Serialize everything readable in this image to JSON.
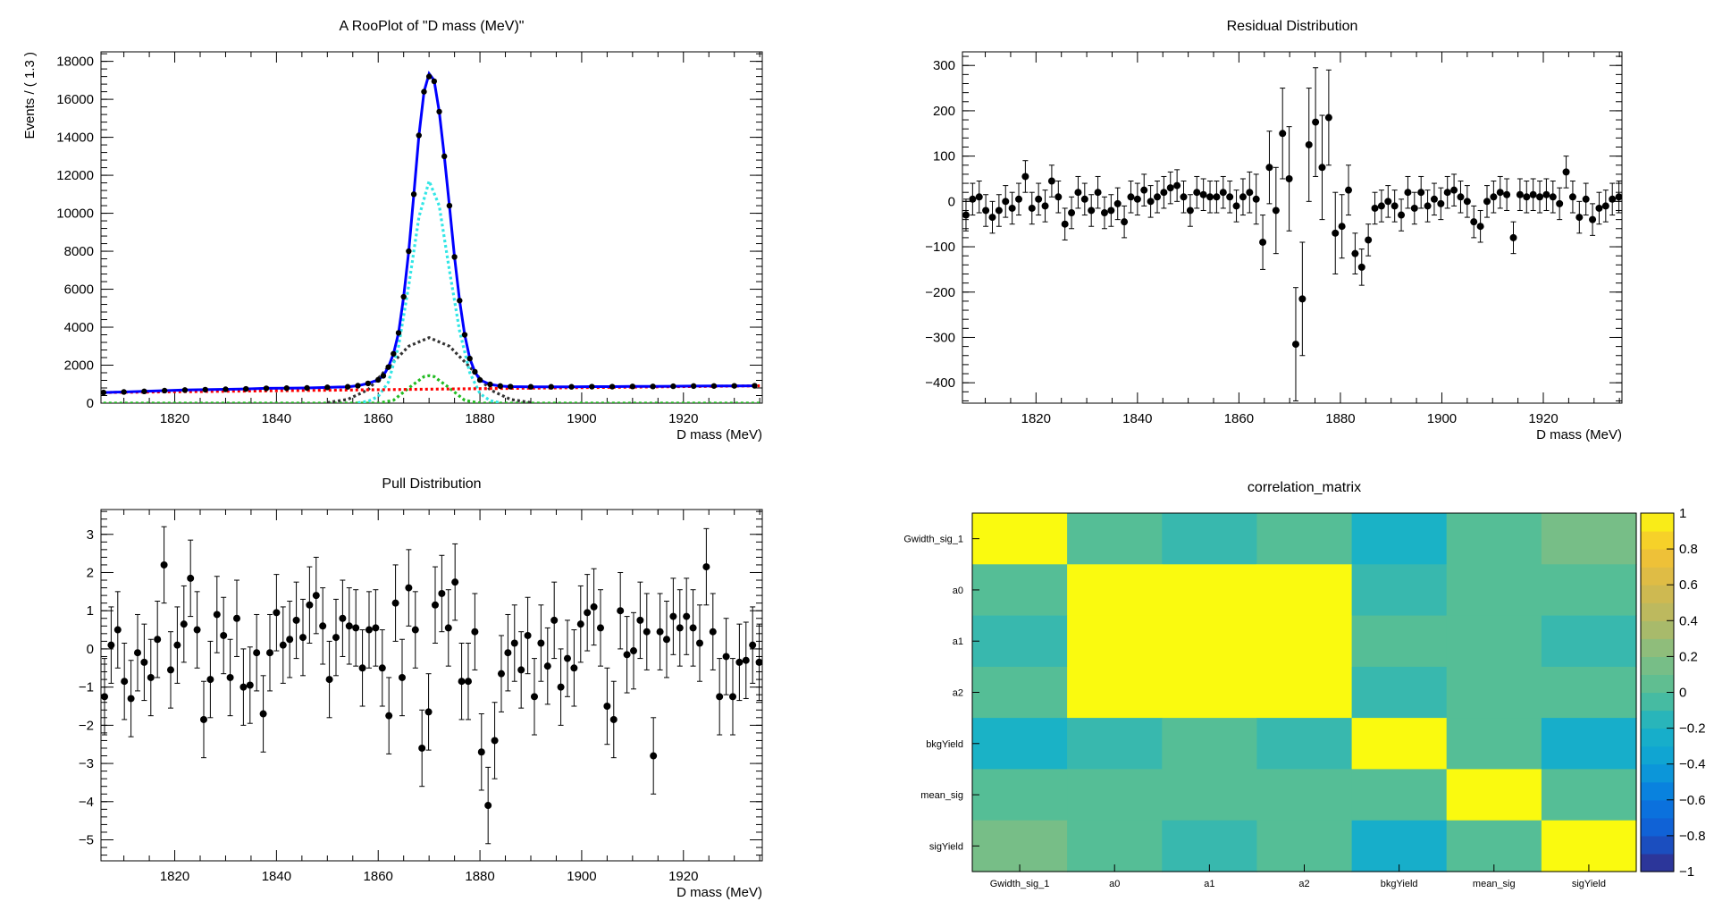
{
  "chart_data": [
    {
      "type": "line",
      "title": "A RooPlot of \"D mass (MeV)\"",
      "xlabel": "D mass (MeV)",
      "ylabel": "Events / ( 1.3 )",
      "xlim": [
        1805.5,
        1935.5
      ],
      "ylim": [
        0,
        18500
      ],
      "xticks": [
        1820,
        1840,
        1860,
        1880,
        1900,
        1920
      ],
      "yticks": [
        0,
        2000,
        4000,
        6000,
        8000,
        10000,
        12000,
        14000,
        16000,
        18000
      ],
      "series": [
        {
          "name": "data",
          "style": "points",
          "color": "#000000",
          "x": [
            1806,
            1810,
            1814,
            1818,
            1822,
            1826,
            1830,
            1834,
            1838,
            1842,
            1846,
            1850,
            1854,
            1856,
            1858,
            1860,
            1861,
            1862,
            1863,
            1864,
            1865,
            1866,
            1867,
            1868,
            1869,
            1870,
            1871,
            1872,
            1873,
            1874,
            1875,
            1876,
            1877,
            1878,
            1879,
            1880,
            1882,
            1884,
            1886,
            1890,
            1894,
            1898,
            1902,
            1906,
            1910,
            1914,
            1918,
            1922,
            1926,
            1930,
            1934
          ],
          "y": [
            560,
            590,
            620,
            660,
            690,
            710,
            730,
            750,
            780,
            790,
            800,
            830,
            860,
            920,
            1040,
            1230,
            1440,
            1900,
            2600,
            3700,
            5600,
            8000,
            11000,
            14100,
            16400,
            17200,
            16950,
            15350,
            13000,
            10400,
            7700,
            5400,
            3600,
            2350,
            1650,
            1220,
            990,
            900,
            870,
            860,
            860,
            860,
            870,
            870,
            880,
            880,
            890,
            900,
            905,
            910,
            915
          ]
        },
        {
          "name": "total-fit",
          "style": "line",
          "color": "#0000ff",
          "x": [
            1806,
            1810,
            1814,
            1818,
            1822,
            1826,
            1830,
            1834,
            1838,
            1842,
            1846,
            1850,
            1854,
            1856,
            1858,
            1860,
            1861,
            1862,
            1863,
            1864,
            1865,
            1866,
            1867,
            1868,
            1869,
            1870,
            1871,
            1872,
            1873,
            1874,
            1875,
            1876,
            1877,
            1878,
            1879,
            1880,
            1882,
            1884,
            1886,
            1890,
            1894,
            1898,
            1902,
            1906,
            1910,
            1914,
            1918,
            1922,
            1926,
            1930,
            1934
          ],
          "y": [
            560,
            590,
            620,
            660,
            690,
            710,
            730,
            750,
            780,
            790,
            800,
            830,
            860,
            920,
            1040,
            1230,
            1440,
            1900,
            2600,
            3700,
            5600,
            8000,
            11000,
            14100,
            16400,
            17350,
            17000,
            15350,
            13000,
            10400,
            7700,
            5400,
            3600,
            2350,
            1650,
            1220,
            990,
            900,
            870,
            860,
            860,
            860,
            870,
            870,
            880,
            880,
            890,
            900,
            905,
            910,
            915
          ]
        },
        {
          "name": "signal-component-1",
          "style": "dashed",
          "color": "#33e6e6",
          "x": [
            1856,
            1858,
            1860,
            1862,
            1864,
            1866,
            1868,
            1870,
            1872,
            1874,
            1876,
            1878,
            1880,
            1882,
            1884
          ],
          "y": [
            20,
            100,
            350,
            1100,
            3000,
            6200,
            9800,
            11700,
            10400,
            7000,
            3800,
            1600,
            500,
            130,
            20
          ]
        },
        {
          "name": "signal-component-2",
          "style": "dashed",
          "color": "#333333",
          "x": [
            1850,
            1854,
            1858,
            1862,
            1866,
            1870,
            1874,
            1878,
            1882,
            1886,
            1890
          ],
          "y": [
            30,
            200,
            700,
            1900,
            3000,
            3450,
            3000,
            1900,
            700,
            200,
            30
          ]
        },
        {
          "name": "signal-component-3",
          "style": "dashed",
          "color": "#22bb22",
          "x": [
            1806,
            1860,
            1863,
            1866,
            1869,
            1870,
            1871,
            1874,
            1877,
            1880,
            1935
          ],
          "y": [
            0,
            0,
            150,
            800,
            1400,
            1450,
            1400,
            800,
            150,
            0,
            0
          ]
        },
        {
          "name": "background",
          "style": "dashed",
          "color": "#ff0000",
          "x": [
            1806,
            1935
          ],
          "y": [
            560,
            915
          ]
        }
      ]
    },
    {
      "type": "scatter",
      "title": "Residual Distribution",
      "xlabel": "D mass (MeV)",
      "ylabel": "",
      "xlim": [
        1805.5,
        1935.5
      ],
      "ylim": [
        -445,
        330
      ],
      "xticks": [
        1820,
        1840,
        1860,
        1880,
        1900,
        1920
      ],
      "yticks": [
        -400,
        -300,
        -200,
        -100,
        0,
        100,
        200,
        300
      ],
      "x": [
        1806.2,
        1807.5,
        1808.8,
        1810.1,
        1811.4,
        1812.7,
        1814.0,
        1815.3,
        1816.6,
        1817.9,
        1819.2,
        1820.5,
        1821.8,
        1823.1,
        1824.4,
        1825.7,
        1827.0,
        1828.3,
        1829.6,
        1830.9,
        1832.2,
        1833.5,
        1834.8,
        1836.1,
        1837.4,
        1838.7,
        1840.0,
        1841.3,
        1842.6,
        1843.9,
        1845.2,
        1846.5,
        1847.8,
        1849.1,
        1850.4,
        1851.7,
        1853.0,
        1854.3,
        1855.6,
        1856.9,
        1858.2,
        1859.5,
        1860.8,
        1862.1,
        1863.4,
        1864.7,
        1866.0,
        1867.3,
        1868.6,
        1869.9,
        1871.2,
        1872.5,
        1873.8,
        1875.1,
        1876.4,
        1877.7,
        1879.0,
        1880.3,
        1881.6,
        1882.9,
        1884.2,
        1885.5,
        1886.8,
        1888.1,
        1889.4,
        1890.7,
        1892.0,
        1893.3,
        1894.6,
        1895.9,
        1897.2,
        1898.5,
        1899.8,
        1901.1,
        1902.4,
        1903.7,
        1905.0,
        1906.3,
        1907.6,
        1908.9,
        1910.2,
        1911.5,
        1912.8,
        1914.1,
        1915.4,
        1916.7,
        1918.0,
        1919.3,
        1920.6,
        1921.9,
        1923.2,
        1924.5,
        1925.8,
        1927.1,
        1928.4,
        1929.7,
        1931.0,
        1932.3,
        1933.6,
        1934.9
      ],
      "y": [
        -30,
        5,
        10,
        -20,
        -35,
        -20,
        0,
        -15,
        5,
        55,
        -15,
        5,
        -10,
        45,
        10,
        -50,
        -25,
        20,
        5,
        -20,
        20,
        -25,
        -20,
        -5,
        -45,
        10,
        5,
        25,
        0,
        10,
        20,
        30,
        35,
        10,
        -20,
        20,
        15,
        10,
        10,
        20,
        10,
        -10,
        10,
        20,
        5,
        -90,
        75,
        -20,
        150,
        50,
        -315,
        -215,
        125,
        175,
        75,
        185,
        -70,
        -55,
        25,
        -115,
        -145,
        -85,
        -15,
        -10,
        0,
        -10,
        -30,
        20,
        -15,
        20,
        -10,
        5,
        -5,
        20,
        25,
        10,
        0,
        -45,
        -55,
        0,
        10,
        20,
        15,
        -80,
        15,
        10,
        15,
        10,
        15,
        10,
        -5,
        65,
        10,
        -35,
        5,
        -40,
        -15,
        -10,
        5,
        10
      ],
      "errors": [
        35,
        35,
        35,
        35,
        35,
        35,
        35,
        35,
        35,
        35,
        35,
        35,
        35,
        35,
        35,
        35,
        35,
        35,
        35,
        35,
        35,
        35,
        35,
        35,
        35,
        35,
        35,
        35,
        35,
        35,
        35,
        35,
        35,
        35,
        35,
        35,
        35,
        35,
        35,
        35,
        35,
        35,
        40,
        45,
        55,
        60,
        80,
        95,
        100,
        115,
        125,
        125,
        125,
        120,
        115,
        105,
        90,
        70,
        55,
        45,
        40,
        35,
        35,
        35,
        35,
        35,
        35,
        35,
        35,
        35,
        35,
        35,
        35,
        35,
        35,
        35,
        35,
        35,
        35,
        35,
        35,
        35,
        35,
        35,
        35,
        35,
        35,
        35,
        35,
        35,
        35,
        35,
        35,
        35,
        35,
        35,
        35,
        35,
        35,
        35
      ]
    },
    {
      "type": "scatter",
      "title": "Pull Distribution",
      "xlabel": "D mass (MeV)",
      "ylabel": "",
      "xlim": [
        1805.5,
        1935.5
      ],
      "ylim": [
        -5.55,
        3.65
      ],
      "xticks": [
        1820,
        1840,
        1860,
        1880,
        1900,
        1920
      ],
      "yticks": [
        -5,
        -4,
        -3,
        -2,
        -1,
        0,
        1,
        2,
        3
      ],
      "x": [
        1806.2,
        1807.5,
        1808.8,
        1810.1,
        1811.4,
        1812.7,
        1814.0,
        1815.3,
        1816.6,
        1817.9,
        1819.2,
        1820.5,
        1821.8,
        1823.1,
        1824.4,
        1825.7,
        1827.0,
        1828.3,
        1829.6,
        1830.9,
        1832.2,
        1833.5,
        1834.8,
        1836.1,
        1837.4,
        1838.7,
        1840.0,
        1841.3,
        1842.6,
        1843.9,
        1845.2,
        1846.5,
        1847.8,
        1849.1,
        1850.4,
        1851.7,
        1853.0,
        1854.3,
        1855.6,
        1856.9,
        1858.2,
        1859.5,
        1860.8,
        1862.1,
        1863.4,
        1864.7,
        1866.0,
        1867.3,
        1868.6,
        1869.9,
        1871.2,
        1872.5,
        1873.8,
        1875.1,
        1876.4,
        1877.7,
        1879.0,
        1880.3,
        1881.6,
        1882.9,
        1884.2,
        1885.5,
        1886.8,
        1888.1,
        1889.4,
        1890.7,
        1892.0,
        1893.3,
        1894.6,
        1895.9,
        1897.2,
        1898.5,
        1899.8,
        1901.1,
        1902.4,
        1903.7,
        1905.0,
        1906.3,
        1907.6,
        1908.9,
        1910.2,
        1911.5,
        1912.8,
        1914.1,
        1915.4,
        1916.7,
        1918.0,
        1919.3,
        1920.6,
        1921.9,
        1923.2,
        1924.5,
        1925.8,
        1927.1,
        1928.4,
        1929.7,
        1931.0,
        1932.3,
        1933.6,
        1934.9
      ],
      "y": [
        -1.25,
        0.1,
        0.5,
        -0.85,
        -1.3,
        -0.1,
        -0.35,
        -0.75,
        0.25,
        2.2,
        -0.55,
        0.1,
        0.65,
        1.85,
        0.5,
        -1.85,
        -0.8,
        0.9,
        0.35,
        -0.75,
        0.8,
        -1.0,
        -0.95,
        -0.1,
        -1.7,
        -0.1,
        0.95,
        0.1,
        0.25,
        0.75,
        0.3,
        1.15,
        1.4,
        0.6,
        -0.8,
        0.3,
        0.8,
        0.6,
        0.55,
        -0.5,
        0.5,
        0.55,
        -0.5,
        -1.75,
        1.2,
        -0.75,
        1.6,
        0.5,
        -2.6,
        -1.65,
        1.15,
        1.45,
        0.55,
        1.75,
        -0.85,
        -0.85,
        0.45,
        -2.7,
        -4.1,
        -2.4,
        -0.65,
        -0.1,
        0.15,
        -0.55,
        0.35,
        -1.25,
        0.15,
        -0.45,
        0.75,
        -1.0,
        -0.25,
        -0.5,
        0.65,
        0.95,
        1.1,
        0.55,
        -1.5,
        -1.85,
        1.0,
        -0.15,
        -0.05,
        0.75,
        0.45,
        -2.8,
        0.45,
        0.25,
        0.85,
        0.55,
        0.85,
        0.55,
        0.15,
        2.15,
        0.45,
        -1.25,
        -0.2,
        -1.25,
        -0.35,
        -0.3,
        0.1,
        -0.35
      ],
      "errors": [
        1.0,
        1.0,
        1.0,
        1.0,
        1.0,
        1.0,
        1.0,
        1.0,
        1.0,
        1.0,
        1.0,
        1.0,
        1.0,
        1.0,
        1.0,
        1.0,
        1.0,
        1.0,
        1.0,
        1.0,
        1.0,
        1.0,
        1.0,
        1.0,
        1.0,
        1.0,
        1.0,
        1.0,
        1.0,
        1.0,
        1.0,
        1.0,
        1.0,
        1.0,
        1.0,
        1.0,
        1.0,
        1.0,
        1.0,
        1.0,
        1.0,
        1.0,
        1.0,
        1.0,
        1.0,
        1.0,
        1.0,
        1.0,
        1.0,
        1.0,
        1.0,
        1.0,
        1.0,
        1.0,
        1.0,
        1.0,
        1.0,
        1.0,
        1.0,
        1.0,
        1.0,
        1.0,
        1.0,
        1.0,
        1.0,
        1.0,
        1.0,
        1.0,
        1.0,
        1.0,
        1.0,
        1.0,
        1.0,
        1.0,
        1.0,
        1.0,
        1.0,
        1.0,
        1.0,
        1.0,
        1.0,
        1.0,
        1.0,
        1.0,
        1.0,
        1.0,
        1.0,
        1.0,
        1.0,
        1.0,
        1.0,
        1.0,
        1.0,
        1.0,
        1.0,
        1.0,
        1.0,
        1.0,
        1.0,
        1.0
      ]
    },
    {
      "type": "heatmap",
      "title": "correlation_matrix",
      "labels": [
        "Gwidth_sig_1",
        "a0",
        "a1",
        "a2",
        "bkgYield",
        "mean_sig",
        "sigYield"
      ],
      "zlim": [
        -1,
        1
      ],
      "colorbar_ticks": [
        -1,
        -0.8,
        -0.6,
        -0.4,
        -0.2,
        0,
        0.2,
        0.4,
        0.6,
        0.8,
        1
      ],
      "matrix": [
        [
          1.0,
          0.0,
          -0.1,
          0.0,
          -0.2,
          0.0,
          0.15
        ],
        [
          0.0,
          1.0,
          1.0,
          1.0,
          -0.1,
          0.0,
          0.0
        ],
        [
          -0.1,
          1.0,
          1.0,
          1.0,
          0.0,
          0.0,
          -0.1
        ],
        [
          0.0,
          1.0,
          1.0,
          1.0,
          -0.1,
          0.0,
          0.0
        ],
        [
          -0.2,
          -0.1,
          0.0,
          -0.1,
          1.0,
          0.0,
          -0.25
        ],
        [
          0.0,
          0.0,
          0.0,
          0.0,
          0.0,
          1.0,
          0.0
        ],
        [
          0.15,
          0.0,
          -0.1,
          0.0,
          -0.25,
          0.0,
          1.0
        ]
      ]
    }
  ]
}
